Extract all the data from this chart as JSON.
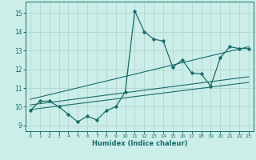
{
  "xlabel": "Humidex (Indice chaleur)",
  "bg_color": "#cceee8",
  "grid_color": "#b8d8d4",
  "line_color": "#1a6b6b",
  "xlim": [
    -0.5,
    23.5
  ],
  "ylim": [
    8.7,
    15.6
  ],
  "xticks": [
    0,
    1,
    2,
    3,
    4,
    5,
    6,
    7,
    8,
    9,
    10,
    11,
    12,
    13,
    14,
    15,
    16,
    17,
    18,
    19,
    20,
    21,
    22,
    23
  ],
  "yticks": [
    9,
    10,
    11,
    12,
    13,
    14,
    15
  ],
  "main_x": [
    0,
    1,
    2,
    3,
    4,
    5,
    6,
    7,
    8,
    9,
    10,
    11,
    12,
    13,
    14,
    15,
    16,
    17,
    18,
    19,
    20,
    21,
    22,
    23
  ],
  "main_y": [
    9.8,
    10.3,
    10.3,
    10.0,
    9.6,
    9.2,
    9.5,
    9.3,
    9.8,
    10.0,
    10.8,
    15.1,
    14.0,
    13.6,
    13.5,
    12.1,
    12.5,
    11.8,
    11.75,
    11.1,
    12.6,
    13.2,
    13.1,
    13.1
  ],
  "reg_line1_x": [
    0,
    23
  ],
  "reg_line1_y": [
    9.85,
    11.3
  ],
  "reg_line2_x": [
    0,
    23
  ],
  "reg_line2_y": [
    10.1,
    11.6
  ],
  "reg_line3_x": [
    0,
    23
  ],
  "reg_line3_y": [
    10.4,
    13.2
  ]
}
